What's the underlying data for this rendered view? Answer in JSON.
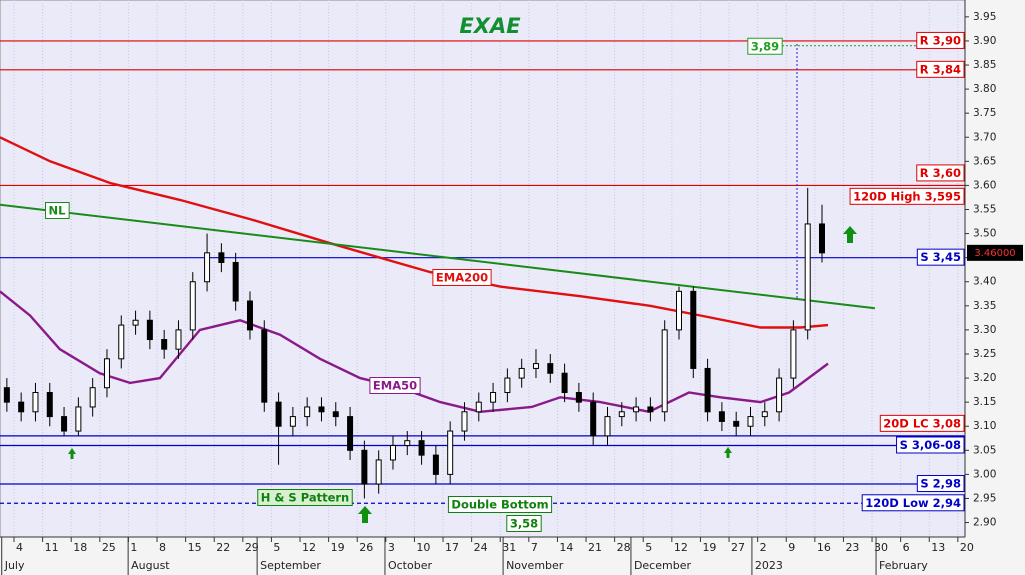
{
  "chart_data": {
    "type": "candlestick",
    "title": "EXAE",
    "xlim": [
      -0.49,
      33.25
    ],
    "xticks": [
      {
        "value": 0,
        "label": "4"
      },
      {
        "value": 1,
        "label": "11"
      },
      {
        "value": 2,
        "label": "18"
      },
      {
        "value": 3,
        "label": "25"
      },
      {
        "value": 4,
        "label": "1"
      },
      {
        "value": 5,
        "label": "8"
      },
      {
        "value": 6,
        "label": "15"
      },
      {
        "value": 7,
        "label": "22"
      },
      {
        "value": 8,
        "label": "29"
      },
      {
        "value": 9,
        "label": "5"
      },
      {
        "value": 10,
        "label": "12"
      },
      {
        "value": 11,
        "label": "19"
      },
      {
        "value": 12,
        "label": "26"
      },
      {
        "value": 13,
        "label": "3"
      },
      {
        "value": 14,
        "label": "10"
      },
      {
        "value": 15,
        "label": "17"
      },
      {
        "value": 16,
        "label": "24"
      },
      {
        "value": 17,
        "label": "31"
      },
      {
        "value": 18,
        "label": "7"
      },
      {
        "value": 19,
        "label": "14"
      },
      {
        "value": 20,
        "label": "21"
      },
      {
        "value": 21,
        "label": "28"
      },
      {
        "value": 22,
        "label": "5"
      },
      {
        "value": 23,
        "label": "12"
      },
      {
        "value": 24,
        "label": "19"
      },
      {
        "value": 25,
        "label": "27"
      },
      {
        "value": 26,
        "label": "2"
      },
      {
        "value": 27,
        "label": "9"
      },
      {
        "value": 28,
        "label": "16"
      },
      {
        "value": 29,
        "label": "23"
      },
      {
        "value": 30,
        "label": "30"
      },
      {
        "value": 31,
        "label": "6"
      },
      {
        "value": 32,
        "label": "13"
      },
      {
        "value": 33,
        "label": "20"
      }
    ],
    "month_labels": [
      {
        "x": -0.43,
        "label": "July"
      },
      {
        "x": 3.99,
        "label": "August"
      },
      {
        "x": 8.5,
        "label": "September"
      },
      {
        "x": 12.97,
        "label": "October"
      },
      {
        "x": 17.1,
        "label": "November"
      },
      {
        "x": 21.57,
        "label": "December"
      },
      {
        "x": 25.8,
        "label": "2023"
      },
      {
        "x": 30.14,
        "label": "February"
      }
    ],
    "ylim": [
      2.87,
      3.985
    ],
    "yticks": [
      {
        "value": 2.9,
        "label": "2.90"
      },
      2.95,
      {
        "value": 3.0,
        "label": "3.00"
      },
      3.05,
      {
        "value": 3.1,
        "label": "3.10"
      },
      3.15,
      {
        "value": 3.2,
        "label": "3.20"
      },
      3.25,
      {
        "value": 3.3,
        "label": "3.30"
      },
      3.35,
      {
        "value": 3.4,
        "label": "3.40"
      },
      3.45,
      {
        "value": 3.5,
        "label": "3.50"
      },
      3.55,
      {
        "value": 3.6,
        "label": "3.60"
      },
      3.65,
      {
        "value": 3.7,
        "label": "3.70"
      },
      3.75,
      {
        "value": 3.8,
        "label": "3.80"
      },
      3.85,
      {
        "value": 3.9,
        "label": "3.90"
      },
      3.95
    ],
    "grid": true,
    "candles": {
      "x": [
        -0.25,
        0.25,
        0.75,
        1.25,
        1.75,
        2.25,
        2.75,
        3.25,
        3.75,
        4.25,
        4.75,
        5.25,
        5.75,
        6.25,
        6.75,
        7.25,
        7.75,
        8.25,
        8.75,
        9.25,
        9.75,
        10.25,
        10.75,
        11.25,
        11.75,
        12.25,
        12.75,
        13.25,
        13.75,
        14.25,
        14.75,
        15.25,
        15.75,
        16.25,
        16.75,
        17.25,
        17.75,
        18.25,
        18.75,
        19.25,
        19.75,
        20.25,
        20.75,
        21.25,
        21.75,
        22.25,
        22.75,
        23.25,
        23.75,
        24.25,
        24.75,
        25.25,
        25.75,
        26.25,
        26.75,
        27.25,
        27.75,
        28.25
      ],
      "open": [
        3.18,
        3.15,
        3.13,
        3.17,
        3.12,
        3.09,
        3.14,
        3.18,
        3.24,
        3.31,
        3.32,
        3.28,
        3.26,
        3.3,
        3.4,
        3.46,
        3.44,
        3.36,
        3.3,
        3.15,
        3.1,
        3.12,
        3.14,
        3.13,
        3.12,
        3.05,
        2.98,
        3.03,
        3.06,
        3.07,
        3.04,
        3.0,
        3.09,
        3.13,
        3.15,
        3.17,
        3.2,
        3.22,
        3.23,
        3.21,
        3.17,
        3.15,
        3.08,
        3.12,
        3.13,
        3.14,
        3.13,
        3.3,
        3.38,
        3.22,
        3.13,
        3.11,
        3.1,
        3.12,
        3.13,
        3.2,
        3.3,
        3.52
      ],
      "high": [
        3.2,
        3.17,
        3.19,
        3.19,
        3.14,
        3.16,
        3.2,
        3.26,
        3.33,
        3.34,
        3.34,
        3.3,
        3.32,
        3.42,
        3.5,
        3.48,
        3.46,
        3.38,
        3.32,
        3.17,
        3.14,
        3.16,
        3.16,
        3.15,
        3.14,
        3.07,
        3.05,
        3.08,
        3.09,
        3.09,
        3.06,
        3.11,
        3.15,
        3.17,
        3.19,
        3.22,
        3.24,
        3.26,
        3.25,
        3.23,
        3.19,
        3.17,
        3.14,
        3.15,
        3.16,
        3.16,
        3.32,
        3.39,
        3.39,
        3.24,
        3.15,
        3.13,
        3.14,
        3.15,
        3.22,
        3.32,
        3.595,
        3.56
      ],
      "low": [
        3.13,
        3.11,
        3.11,
        3.1,
        3.08,
        3.08,
        3.12,
        3.16,
        3.22,
        3.29,
        3.26,
        3.24,
        3.24,
        3.28,
        3.38,
        3.42,
        3.34,
        3.28,
        3.13,
        3.02,
        3.08,
        3.1,
        3.11,
        3.1,
        3.03,
        2.95,
        2.96,
        3.01,
        3.04,
        3.02,
        2.98,
        2.98,
        3.07,
        3.11,
        3.13,
        3.15,
        3.18,
        3.2,
        3.19,
        3.15,
        3.13,
        3.06,
        3.06,
        3.1,
        3.11,
        3.11,
        3.11,
        3.28,
        3.2,
        3.11,
        3.09,
        3.08,
        3.08,
        3.1,
        3.11,
        3.18,
        3.28,
        3.44
      ],
      "close": [
        3.15,
        3.13,
        3.17,
        3.12,
        3.09,
        3.14,
        3.18,
        3.24,
        3.31,
        3.32,
        3.28,
        3.26,
        3.3,
        3.4,
        3.46,
        3.44,
        3.36,
        3.3,
        3.15,
        3.1,
        3.12,
        3.14,
        3.13,
        3.12,
        3.05,
        2.98,
        3.03,
        3.06,
        3.07,
        3.04,
        3.0,
        3.09,
        3.13,
        3.15,
        3.17,
        3.2,
        3.22,
        3.23,
        3.21,
        3.17,
        3.15,
        3.08,
        3.12,
        3.13,
        3.14,
        3.13,
        3.3,
        3.38,
        3.22,
        3.13,
        3.11,
        3.1,
        3.12,
        3.13,
        3.2,
        3.3,
        3.52,
        3.46
      ]
    },
    "series": [
      {
        "name": "EMA200",
        "color": "#e01010",
        "x": [
          -0.49,
          1.26,
          3.36,
          5.8,
          8.25,
          11.05,
          12.8,
          14.55,
          17,
          19.8,
          22.24,
          24,
          26.1,
          27.5,
          28.46
        ],
        "values": [
          3.7,
          3.65,
          3.605,
          3.57,
          3.53,
          3.48,
          3.45,
          3.42,
          3.39,
          3.37,
          3.35,
          3.33,
          3.305,
          3.305,
          3.31
        ]
      },
      {
        "name": "EMA50",
        "color": "#8a1a8a",
        "x": [
          -0.49,
          0.56,
          1.6,
          3.0,
          4.06,
          5.1,
          6.5,
          7.9,
          9.3,
          10.7,
          12.1,
          13.5,
          14.9,
          16.3,
          18.1,
          19.1,
          20.5,
          22.2,
          23.6,
          24.7,
          26.1,
          27.1,
          28.46
        ],
        "values": [
          3.38,
          3.33,
          3.26,
          3.21,
          3.19,
          3.2,
          3.3,
          3.32,
          3.29,
          3.24,
          3.2,
          3.18,
          3.15,
          3.13,
          3.14,
          3.16,
          3.15,
          3.13,
          3.17,
          3.16,
          3.15,
          3.17,
          3.23
        ]
      },
      {
        "name": "NL",
        "color": "#1a8a1a",
        "x": [
          -0.49,
          30.1
        ],
        "values": [
          3.56,
          3.345
        ]
      }
    ],
    "levels": [
      {
        "label": "R 3,90",
        "values": [
          3.9
        ],
        "color": "#e00000",
        "style": "solid",
        "label_pos": "on"
      },
      {
        "label": "R 3,84",
        "values": [
          3.84
        ],
        "color": "#e00000",
        "style": "solid",
        "label_pos": "on"
      },
      {
        "label": "R 3,60",
        "values": [
          3.6
        ],
        "color": "#e00000",
        "style": "solid",
        "label_pos": "above"
      },
      {
        "label": "120D High 3,595",
        "values": [
          3.595
        ],
        "color": "#e00000",
        "style": "none",
        "label_pos": "below"
      },
      {
        "label": "S 3,45",
        "values": [
          3.45
        ],
        "color": "#0000c8",
        "style": "solid",
        "label_pos": "on"
      },
      {
        "label": "20D LC 3,08",
        "values": [
          3.08
        ],
        "color": "#e00000",
        "style": "none",
        "label_pos": "above"
      },
      {
        "label": "S 3,06-08",
        "values": [
          3.06,
          3.08
        ],
        "color": "#0000c8",
        "style": "solid",
        "label_pos": "on"
      },
      {
        "label": "S 2,98",
        "values": [
          2.98
        ],
        "color": "#0000c8",
        "style": "solid",
        "label_pos": "on"
      },
      {
        "label": "120D Low 2,94",
        "values": [
          2.94
        ],
        "color": "#0000c8",
        "style": "dashed",
        "label_pos": "on"
      }
    ],
    "target": {
      "value": 3.89,
      "label": "3,89"
    },
    "last_price": {
      "value": 3.46,
      "label": "3.46000"
    },
    "annotations": {
      "pattern": "H & S Pattern",
      "double_bottom": "Double Bottom",
      "double_bottom_target": "3,58"
    }
  }
}
